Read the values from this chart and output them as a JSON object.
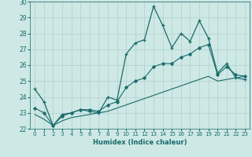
{
  "xlabel": "Humidex (Indice chaleur)",
  "xlim": [
    -0.5,
    23.5
  ],
  "ylim": [
    22,
    30
  ],
  "yticks": [
    22,
    23,
    24,
    25,
    26,
    27,
    28,
    29,
    30
  ],
  "xticks": [
    0,
    1,
    2,
    3,
    4,
    5,
    6,
    7,
    8,
    9,
    10,
    11,
    12,
    13,
    14,
    15,
    16,
    17,
    18,
    19,
    20,
    21,
    22,
    23
  ],
  "bg_color": "#cde8e5",
  "grid_color": "#b0d0ce",
  "line_color": "#1a6b6b",
  "line1_x": [
    0,
    1,
    2,
    3,
    4,
    5,
    6,
    7,
    8,
    9,
    10,
    11,
    12,
    13,
    14,
    15,
    16,
    17,
    18,
    19,
    20,
    21,
    22,
    23
  ],
  "line1_y": [
    24.5,
    23.7,
    22.2,
    22.9,
    23.0,
    23.2,
    23.1,
    23.0,
    24.0,
    23.8,
    26.7,
    27.4,
    27.6,
    29.7,
    28.5,
    27.1,
    28.0,
    27.5,
    28.8,
    27.7,
    25.5,
    26.1,
    25.2,
    25.1
  ],
  "line2_x": [
    0,
    1,
    2,
    3,
    4,
    5,
    6,
    7,
    8,
    9,
    10,
    11,
    12,
    13,
    14,
    15,
    16,
    17,
    18,
    19,
    20,
    21,
    22,
    23
  ],
  "line2_y": [
    22.9,
    22.6,
    22.2,
    22.5,
    22.7,
    22.8,
    22.9,
    23.0,
    23.1,
    23.3,
    23.5,
    23.7,
    23.9,
    24.1,
    24.3,
    24.5,
    24.7,
    24.9,
    25.1,
    25.3,
    25.0,
    25.1,
    25.2,
    25.3
  ],
  "line3_x": [
    0,
    1,
    2,
    3,
    4,
    5,
    6,
    7,
    8,
    9,
    10,
    11,
    12,
    13,
    14,
    15,
    16,
    17,
    18,
    19,
    20,
    21,
    22,
    23
  ],
  "line3_y": [
    23.3,
    23.0,
    22.2,
    22.8,
    23.0,
    23.2,
    23.2,
    23.1,
    23.5,
    23.7,
    24.6,
    25.0,
    25.2,
    25.9,
    26.1,
    26.1,
    26.5,
    26.7,
    27.1,
    27.3,
    25.4,
    25.9,
    25.4,
    25.3
  ]
}
